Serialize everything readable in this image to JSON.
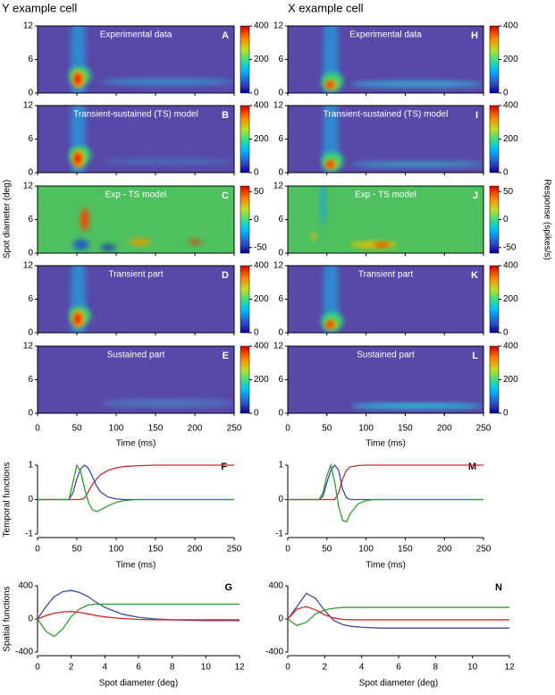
{
  "columns": [
    "Y example cell",
    "X example cell"
  ],
  "ylabel_heatmaps": "Spot diameter (deg)",
  "chart_data": [
    {
      "type": "heatmap",
      "title": "Experimental data",
      "panel": "A",
      "xlim": [
        0,
        250
      ],
      "ylim": [
        0,
        12
      ],
      "yticks": [
        0,
        6,
        12
      ],
      "clim": [
        0,
        400
      ],
      "cticks": [
        0,
        200,
        400
      ]
    },
    {
      "type": "heatmap",
      "title": "Transient-sustained (TS) model",
      "panel": "B",
      "xlim": [
        0,
        250
      ],
      "ylim": [
        0,
        12
      ],
      "yticks": [
        0,
        6,
        12
      ],
      "clim": [
        0,
        400
      ],
      "cticks": [
        0,
        200,
        400
      ]
    },
    {
      "type": "heatmap",
      "title": "Exp - TS model",
      "panel": "C",
      "xlim": [
        0,
        250
      ],
      "ylim": [
        0,
        12
      ],
      "yticks": [
        0,
        6,
        12
      ],
      "clim": [
        -60,
        60
      ],
      "cticks": [
        -50,
        0,
        50
      ]
    },
    {
      "type": "heatmap",
      "title": "Transient part",
      "panel": "D",
      "xlim": [
        0,
        250
      ],
      "ylim": [
        0,
        12
      ],
      "yticks": [
        0,
        6,
        12
      ],
      "clim": [
        0,
        400
      ],
      "cticks": [
        0,
        200,
        400
      ]
    },
    {
      "type": "heatmap",
      "title": "Sustained part",
      "panel": "E",
      "xlim": [
        0,
        250
      ],
      "ylim": [
        0,
        12
      ],
      "yticks": [
        0,
        6,
        12
      ],
      "xticks": [
        0,
        50,
        100,
        150,
        200,
        250
      ],
      "xlabel": "Time (ms)",
      "clim": [
        0,
        400
      ],
      "cticks": [
        0,
        200,
        400
      ]
    },
    {
      "type": "line",
      "panel": "F",
      "ylabel": "Temporal functions",
      "xlabel": "Time (ms)",
      "xlim": [
        0,
        250
      ],
      "ylim": [
        -1,
        1
      ],
      "xticks": [
        0,
        50,
        100,
        150,
        200,
        250
      ],
      "yticks": [
        -1,
        0,
        1
      ],
      "x": [
        0,
        40,
        45,
        50,
        55,
        60,
        65,
        70,
        75,
        80,
        90,
        100,
        110,
        125,
        150,
        175,
        200,
        250
      ],
      "series": [
        {
          "color": "#d62728",
          "values": [
            0,
            0,
            0,
            0,
            0,
            0.05,
            0.25,
            0.45,
            0.6,
            0.72,
            0.85,
            0.92,
            0.96,
            0.98,
            1,
            1,
            1,
            1
          ]
        },
        {
          "color": "#3b4ba0",
          "values": [
            0,
            0,
            0.2,
            0.6,
            0.9,
            1,
            0.9,
            0.65,
            0.4,
            0.22,
            0.07,
            0.02,
            0,
            0,
            0,
            0,
            0,
            0
          ]
        },
        {
          "color": "#2ca02c",
          "values": [
            0,
            0,
            0.5,
            1,
            0.8,
            0.3,
            -0.1,
            -0.3,
            -0.35,
            -0.3,
            -0.18,
            -0.08,
            -0.03,
            0,
            0,
            0,
            0,
            0
          ]
        }
      ]
    },
    {
      "type": "line",
      "panel": "G",
      "ylabel": "Spatial functions",
      "xlabel": "Spot diameter (deg)",
      "xlim": [
        0,
        12
      ],
      "ylim": [
        -400,
        400
      ],
      "xticks": [
        0,
        2,
        4,
        6,
        8,
        10,
        12
      ],
      "yticks": [
        -400,
        0,
        400
      ],
      "x": [
        0,
        0.5,
        1,
        1.5,
        2,
        2.5,
        3,
        3.5,
        4,
        5,
        6,
        7,
        8,
        10,
        12
      ],
      "series": [
        {
          "color": "#3b4ba0",
          "values": [
            0,
            150,
            270,
            330,
            345,
            320,
            270,
            200,
            140,
            60,
            20,
            0,
            -10,
            -20,
            -20
          ]
        },
        {
          "color": "#2ca02c",
          "values": [
            0,
            -150,
            -210,
            -120,
            30,
            120,
            170,
            180,
            180,
            180,
            180,
            180,
            180,
            180,
            180
          ]
        },
        {
          "color": "#d62728",
          "values": [
            0,
            40,
            70,
            85,
            90,
            80,
            60,
            40,
            25,
            5,
            -5,
            -10,
            -10,
            -10,
            -10
          ]
        }
      ]
    },
    {
      "type": "heatmap",
      "title": "Experimental data",
      "panel": "H",
      "xlim": [
        0,
        250
      ],
      "ylim": [
        0,
        12
      ],
      "yticks": [
        0,
        6,
        12
      ],
      "clim": [
        0,
        400
      ],
      "cticks": [
        0,
        200,
        400
      ]
    },
    {
      "type": "heatmap",
      "title": "Transient-sustained (TS) model",
      "panel": "I",
      "xlim": [
        0,
        250
      ],
      "ylim": [
        0,
        12
      ],
      "yticks": [
        0,
        6,
        12
      ],
      "clim": [
        0,
        400
      ],
      "cticks": [
        0,
        200,
        400
      ]
    },
    {
      "type": "heatmap",
      "title": "Exp - TS model",
      "panel": "J",
      "xlim": [
        0,
        250
      ],
      "ylim": [
        0,
        12
      ],
      "yticks": [
        0,
        6,
        12
      ],
      "clim": [
        -60,
        60
      ],
      "cticks": [
        -50,
        0,
        50
      ],
      "clabel": "Response (spikes/s)"
    },
    {
      "type": "heatmap",
      "title": "Transient part",
      "panel": "K",
      "xlim": [
        0,
        250
      ],
      "ylim": [
        0,
        12
      ],
      "yticks": [
        0,
        6,
        12
      ],
      "clim": [
        0,
        400
      ],
      "cticks": [
        0,
        200,
        400
      ]
    },
    {
      "type": "heatmap",
      "title": "Sustained part",
      "panel": "L",
      "xlim": [
        0,
        250
      ],
      "ylim": [
        0,
        12
      ],
      "yticks": [
        0,
        6,
        12
      ],
      "xticks": [
        0,
        50,
        100,
        150,
        200,
        250
      ],
      "xlabel": "Time (ms)",
      "clim": [
        0,
        400
      ],
      "cticks": [
        0,
        200,
        400
      ]
    },
    {
      "type": "line",
      "panel": "M",
      "xlabel": "Time (ms)",
      "xlim": [
        0,
        250
      ],
      "ylim": [
        -1,
        1
      ],
      "xticks": [
        0,
        50,
        100,
        150,
        200,
        250
      ],
      "yticks": [
        -1,
        0,
        1
      ],
      "x": [
        0,
        40,
        45,
        50,
        55,
        60,
        65,
        70,
        75,
        80,
        90,
        100,
        110,
        125,
        150,
        175,
        200,
        250
      ],
      "series": [
        {
          "color": "#d62728",
          "values": [
            0,
            0,
            0,
            0,
            0,
            0,
            0.2,
            0.6,
            0.85,
            0.95,
            0.99,
            1,
            1,
            1,
            1,
            1,
            1,
            1
          ]
        },
        {
          "color": "#3b4ba0",
          "values": [
            0,
            0,
            0.1,
            0.5,
            0.85,
            1,
            0.85,
            0.3,
            0.05,
            0,
            0,
            0,
            0,
            0,
            0,
            0,
            0,
            0
          ]
        },
        {
          "color": "#2ca02c",
          "values": [
            0,
            0,
            0.2,
            0.7,
            1,
            0.5,
            -0.2,
            -0.6,
            -0.65,
            -0.4,
            -0.12,
            -0.03,
            0,
            0,
            0,
            0,
            0,
            0
          ]
        }
      ]
    },
    {
      "type": "line",
      "panel": "N",
      "xlabel": "Spot diameter (deg)",
      "xlim": [
        0,
        12
      ],
      "ylim": [
        -400,
        400
      ],
      "xticks": [
        0,
        2,
        4,
        6,
        8,
        10,
        12
      ],
      "yticks": [
        -400,
        0,
        400
      ],
      "x": [
        0,
        0.5,
        1,
        1.5,
        2,
        2.5,
        3,
        3.5,
        4,
        5,
        6,
        7,
        8,
        10,
        12
      ],
      "series": [
        {
          "color": "#3b4ba0",
          "values": [
            0,
            150,
            310,
            250,
            100,
            -20,
            -70,
            -90,
            -100,
            -110,
            -110,
            -110,
            -110,
            -110,
            -110
          ]
        },
        {
          "color": "#2ca02c",
          "values": [
            0,
            -80,
            -40,
            60,
            110,
            130,
            140,
            140,
            140,
            140,
            140,
            140,
            140,
            140,
            140
          ]
        },
        {
          "color": "#d62728",
          "values": [
            0,
            120,
            150,
            110,
            50,
            10,
            -5,
            -10,
            -10,
            -10,
            -10,
            -10,
            -10,
            -10,
            -10
          ]
        }
      ]
    }
  ]
}
